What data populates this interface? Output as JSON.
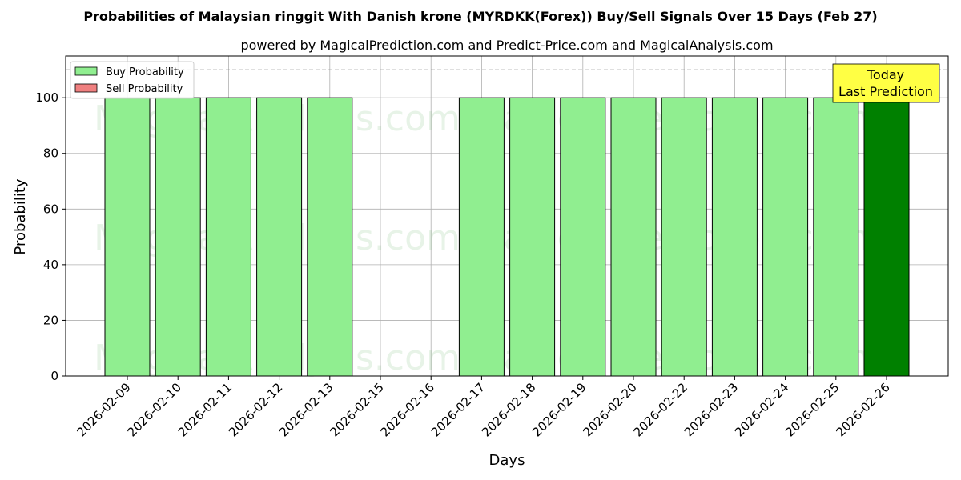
{
  "chart_data": {
    "type": "bar",
    "title": "Probabilities of Malaysian ringgit With Danish krone (MYRDKK(Forex)) Buy/Sell Signals Over 15 Days (Feb 27)",
    "subtitle": "powered by MagicalPrediction.com and Predict-Price.com and MagicalAnalysis.com",
    "xlabel": "Days",
    "ylabel": "Probability",
    "ylim": [
      0,
      115
    ],
    "yticks": [
      0,
      20,
      40,
      60,
      80,
      100
    ],
    "reference_line": 110,
    "grid": true,
    "legend_placement": "top-left",
    "categories": [
      "2026-02-09",
      "2026-02-10",
      "2026-02-11",
      "2026-02-12",
      "2026-02-13",
      "2026-02-15",
      "2026-02-16",
      "2026-02-17",
      "2026-02-18",
      "2026-02-19",
      "2026-02-20",
      "2026-02-22",
      "2026-02-23",
      "2026-02-24",
      "2026-02-25",
      "2026-02-26"
    ],
    "series": [
      {
        "name": "Buy Probability",
        "color": "#90ee90",
        "values": [
          100,
          100,
          100,
          100,
          100,
          0,
          0,
          100,
          100,
          100,
          100,
          100,
          100,
          100,
          100,
          100
        ]
      },
      {
        "name": "Sell Probability",
        "color": "#f08080",
        "values": [
          0,
          0,
          0,
          0,
          0,
          0,
          0,
          0,
          0,
          0,
          0,
          0,
          0,
          0,
          0,
          0
        ]
      }
    ],
    "highlight_index": 15,
    "highlight_color": "#008000",
    "annotation": {
      "line1": "Today",
      "line2": "Last Prediction",
      "color": "#ffff44"
    },
    "watermarks": [
      "MagicalAnalysis.com",
      "MagicalPrediction.com"
    ]
  }
}
